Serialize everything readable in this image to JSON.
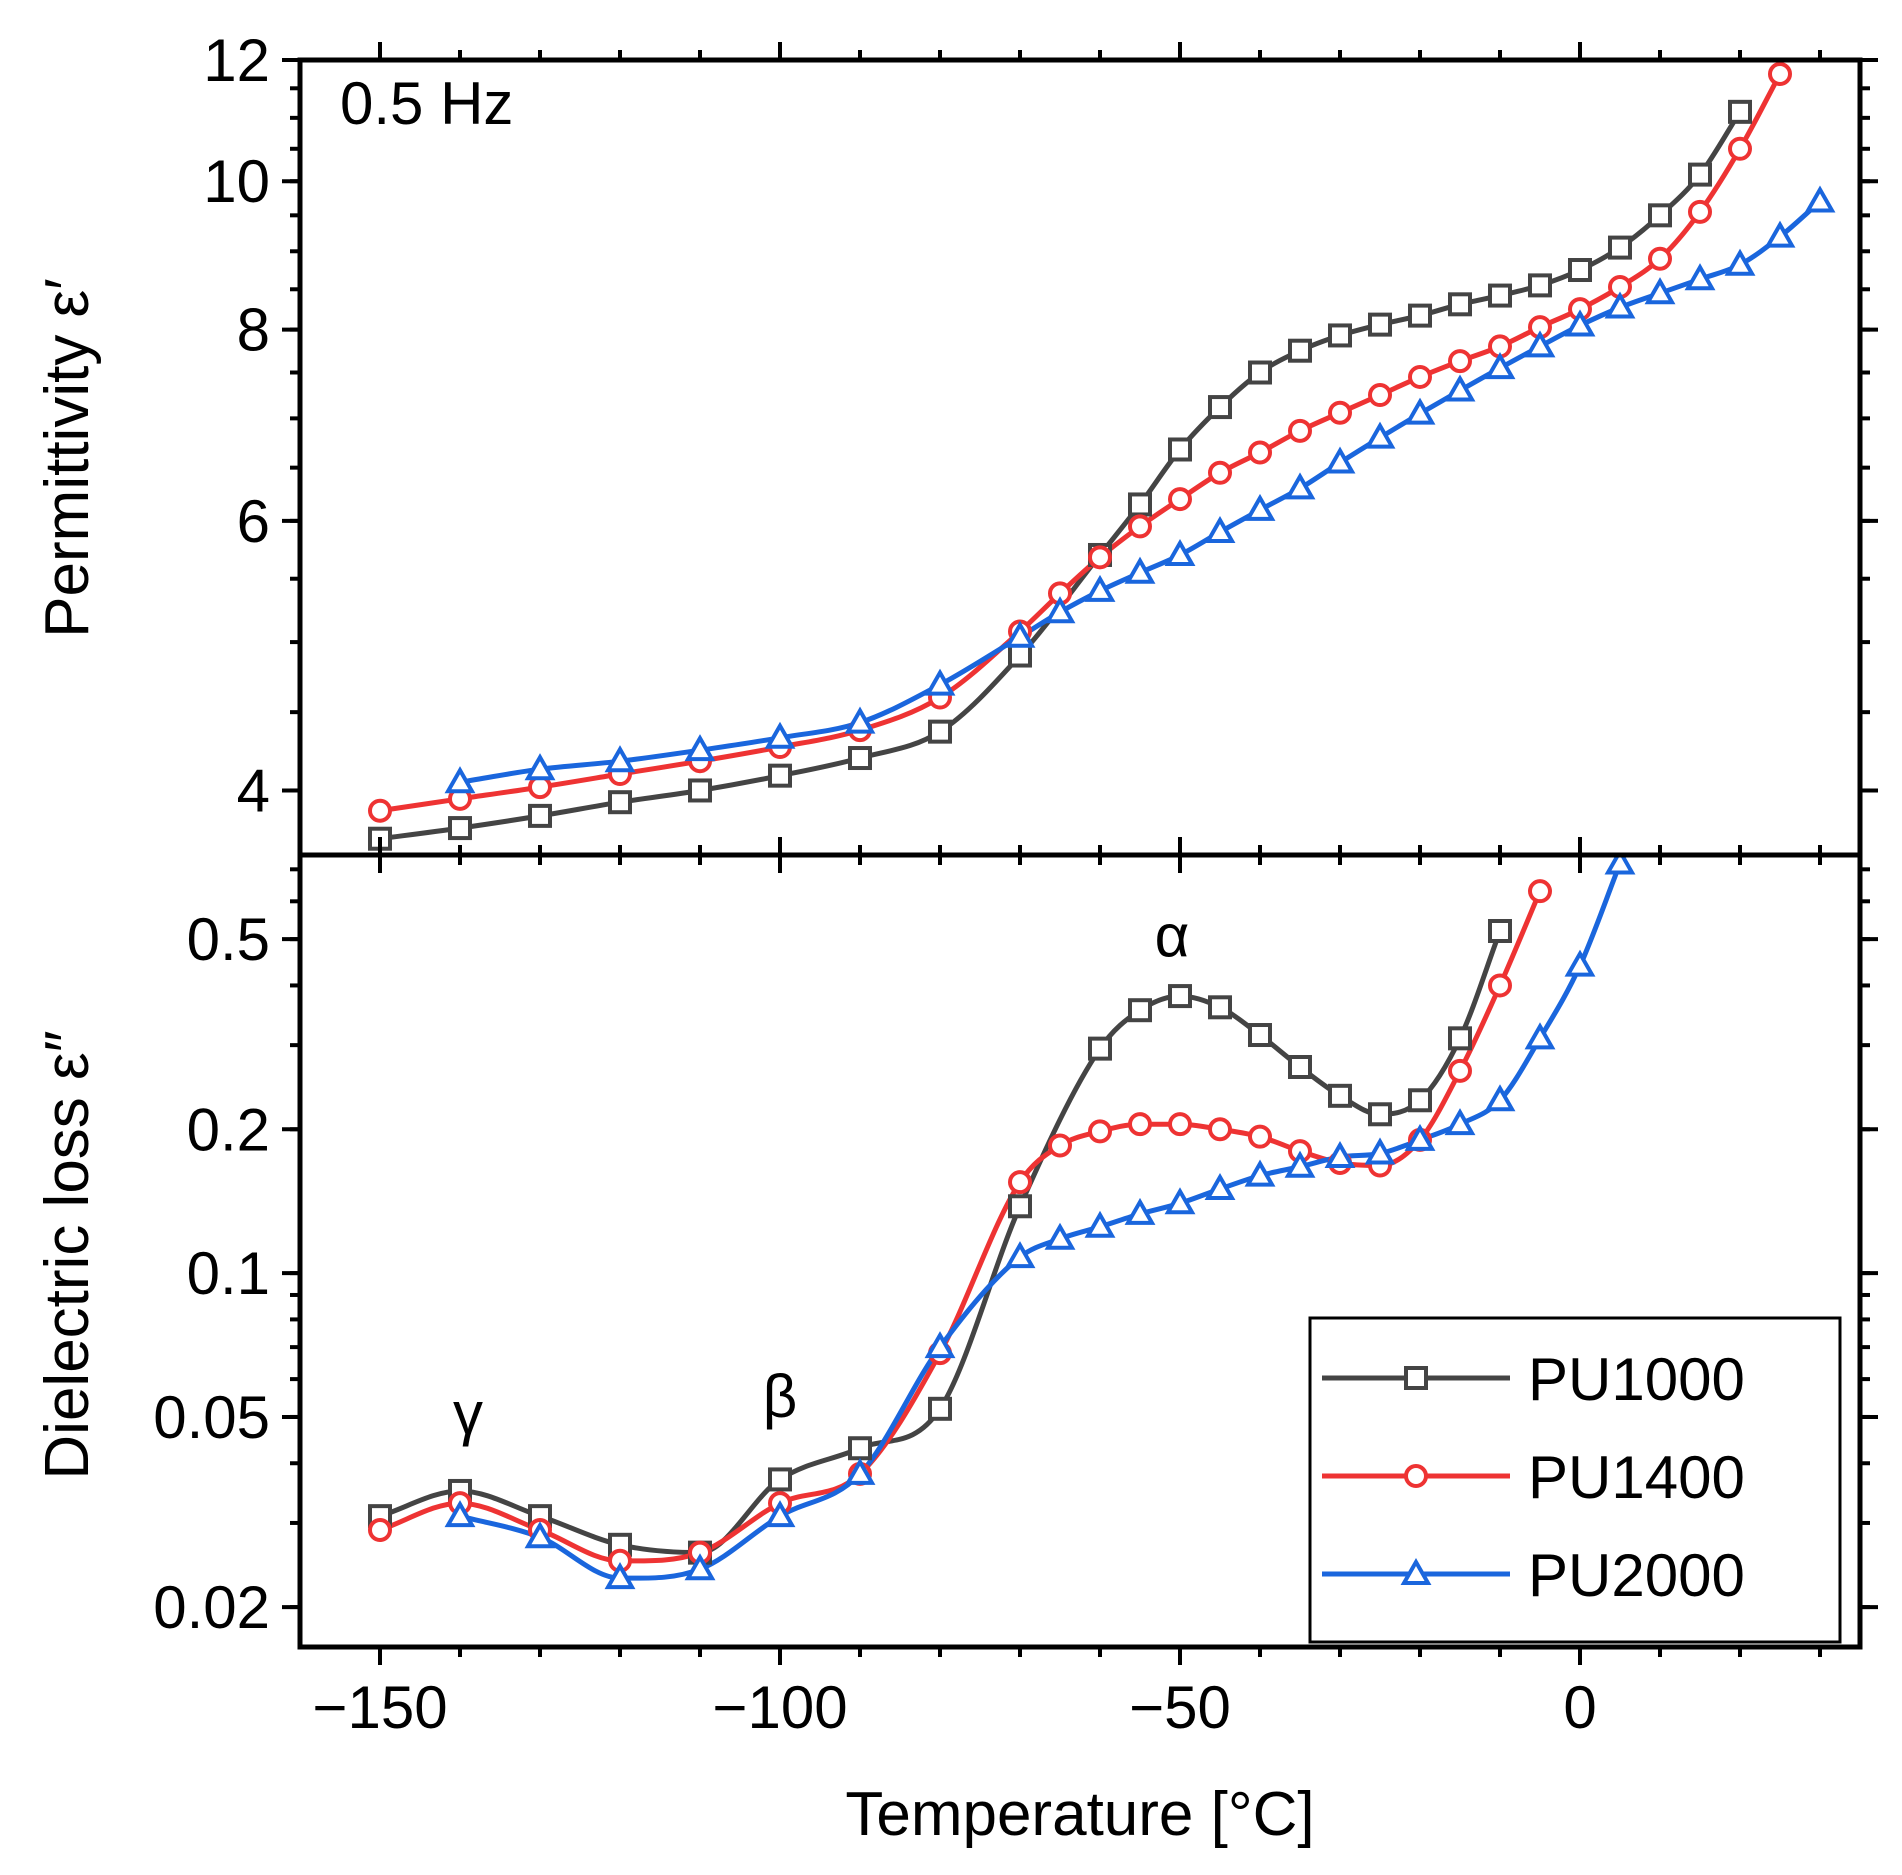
{
  "chart_data": {
    "type": "line",
    "xlabel": "Temperature [°C]",
    "xlim": [
      -160,
      35
    ],
    "xticks": [
      {
        "value": -150,
        "label": "−150"
      },
      {
        "value": -100,
        "label": "−100"
      },
      {
        "value": -50,
        "label": "−50"
      },
      {
        "value": 0,
        "label": "0"
      }
    ],
    "panels": [
      {
        "name": "permittivity",
        "ylabel": "Permittivity ε′",
        "yscale": "log",
        "ylim": [
          3.63,
          12
        ],
        "yticks": [
          {
            "value": 4,
            "label": "4"
          },
          {
            "value": 6,
            "label": "6"
          },
          {
            "value": 8,
            "label": "8"
          },
          {
            "value": 10,
            "label": "10"
          },
          {
            "value": 12,
            "label": "12"
          }
        ],
        "annotations": [
          {
            "text": "0.5 Hz",
            "x": -155,
            "y": 10.9,
            "anchor": "start"
          }
        ],
        "series": [
          {
            "name": "PU1000",
            "color": "#444444",
            "marker": "square",
            "x": [
              -150,
              -140,
              -130,
              -120,
              -110,
              -100,
              -90,
              -80,
              -70,
              -60,
              -55,
              -50,
              -45,
              -40,
              -35,
              -30,
              -25,
              -20,
              -15,
              -10,
              -5,
              0,
              5,
              10,
              15,
              20
            ],
            "y": [
              3.72,
              3.78,
              3.85,
              3.93,
              4.0,
              4.09,
              4.2,
              4.37,
              4.9,
              5.7,
              6.15,
              6.68,
              7.12,
              7.5,
              7.75,
              7.93,
              8.06,
              8.17,
              8.31,
              8.42,
              8.55,
              8.75,
              9.05,
              9.5,
              10.1,
              11.1
            ]
          },
          {
            "name": "PU1400",
            "color": "#ee3333",
            "marker": "circle",
            "x": [
              -150,
              -140,
              -130,
              -120,
              -110,
              -100,
              -90,
              -80,
              -70,
              -65,
              -60,
              -55,
              -50,
              -45,
              -40,
              -35,
              -30,
              -25,
              -20,
              -15,
              -10,
              -5,
              0,
              5,
              10,
              15,
              20,
              25
            ],
            "y": [
              3.88,
              3.95,
              4.02,
              4.1,
              4.18,
              4.27,
              4.38,
              4.6,
              5.08,
              5.38,
              5.68,
              5.95,
              6.2,
              6.45,
              6.65,
              6.87,
              7.06,
              7.25,
              7.45,
              7.63,
              7.8,
              8.03,
              8.25,
              8.53,
              8.9,
              9.55,
              10.5,
              11.75
            ]
          },
          {
            "name": "PU2000",
            "color": "#1a66dd",
            "marker": "triangle",
            "x": [
              -140,
              -130,
              -120,
              -110,
              -100,
              -90,
              -80,
              -70,
              -65,
              -60,
              -55,
              -50,
              -45,
              -40,
              -35,
              -30,
              -25,
              -20,
              -15,
              -10,
              -5,
              0,
              5,
              10,
              15,
              20,
              25,
              30
            ],
            "y": [
              4.05,
              4.13,
              4.18,
              4.25,
              4.33,
              4.43,
              4.69,
              5.04,
              5.23,
              5.4,
              5.55,
              5.7,
              5.9,
              6.1,
              6.3,
              6.55,
              6.8,
              7.05,
              7.3,
              7.55,
              7.8,
              8.05,
              8.27,
              8.45,
              8.63,
              8.82,
              9.2,
              9.7
            ]
          }
        ]
      },
      {
        "name": "dielectric-loss",
        "ylabel": "Dielectric loss ε″",
        "yscale": "log",
        "ylim": [
          0.0165,
          0.75
        ],
        "yticks": [
          {
            "value": 0.02,
            "label": "0.02"
          },
          {
            "value": 0.05,
            "label": "0.05"
          },
          {
            "value": 0.1,
            "label": "0.1"
          },
          {
            "value": 0.2,
            "label": "0.2"
          },
          {
            "value": 0.5,
            "label": "0.5"
          }
        ],
        "annotations": [
          {
            "text": "γ",
            "x": -139,
            "y": 0.046,
            "anchor": "middle"
          },
          {
            "text": "β",
            "x": -100,
            "y": 0.05,
            "anchor": "middle"
          },
          {
            "text": "α",
            "x": -51,
            "y": 0.46,
            "anchor": "middle"
          }
        ],
        "series": [
          {
            "name": "PU1000",
            "color": "#444444",
            "marker": "square",
            "x": [
              -150,
              -140,
              -130,
              -120,
              -110,
              -100,
              -90,
              -80,
              -70,
              -60,
              -55,
              -50,
              -45,
              -40,
              -35,
              -30,
              -25,
              -20,
              -15,
              -10
            ],
            "y": [
              0.031,
              0.035,
              0.031,
              0.027,
              0.026,
              0.037,
              0.043,
              0.052,
              0.138,
              0.295,
              0.355,
              0.38,
              0.36,
              0.315,
              0.27,
              0.235,
              0.215,
              0.23,
              0.31,
              0.52
            ]
          },
          {
            "name": "PU1400",
            "color": "#ee3333",
            "marker": "circle",
            "x": [
              -150,
              -140,
              -130,
              -120,
              -110,
              -100,
              -90,
              -80,
              -70,
              -65,
              -60,
              -55,
              -50,
              -45,
              -40,
              -35,
              -30,
              -25,
              -20,
              -15,
              -10,
              -5
            ],
            "y": [
              0.029,
              0.033,
              0.029,
              0.025,
              0.026,
              0.033,
              0.038,
              0.068,
              0.155,
              0.185,
              0.198,
              0.205,
              0.205,
              0.2,
              0.193,
              0.18,
              0.17,
              0.168,
              0.19,
              0.265,
              0.4,
              0.63
            ]
          },
          {
            "name": "PU2000",
            "color": "#1a66dd",
            "marker": "triangle",
            "x": [
              -140,
              -130,
              -120,
              -110,
              -100,
              -90,
              -80,
              -70,
              -65,
              -60,
              -55,
              -50,
              -45,
              -40,
              -35,
              -30,
              -25,
              -20,
              -15,
              -10,
              -5,
              0,
              5
            ],
            "y": [
              0.031,
              0.028,
              0.023,
              0.024,
              0.031,
              0.038,
              0.07,
              0.108,
              0.118,
              0.125,
              0.133,
              0.14,
              0.15,
              0.16,
              0.167,
              0.175,
              0.178,
              0.19,
              0.205,
              0.23,
              0.31,
              0.44,
              0.72
            ]
          }
        ]
      }
    ],
    "legend": {
      "position": "bottom-right",
      "entries": [
        "PU1000",
        "PU1400",
        "PU2000"
      ]
    }
  }
}
